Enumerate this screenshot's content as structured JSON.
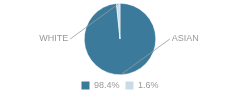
{
  "chart_data": {
    "type": "pie",
    "categories": [
      "ASIAN",
      "WHITE"
    ],
    "values": [
      98.4,
      1.6
    ],
    "value_labels": [
      "98.4%",
      "1.6%"
    ],
    "colors": [
      "#3c7a9c",
      "#c8dce8"
    ],
    "legend": "bottom"
  }
}
